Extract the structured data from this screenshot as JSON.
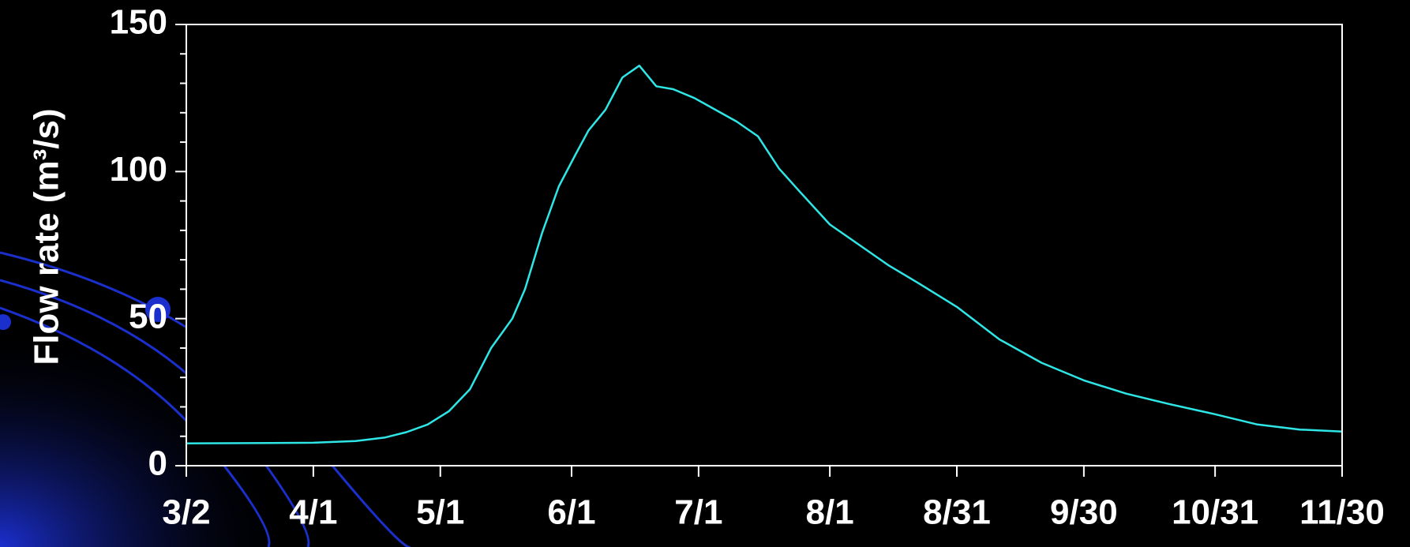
{
  "chart_data": {
    "type": "line",
    "y_label": "Flow rate (m³/s)",
    "x": [
      "3/2",
      "3/22",
      "4/1",
      "4/11",
      "4/18",
      "4/23",
      "4/28",
      "5/3",
      "5/8",
      "5/13",
      "5/18",
      "5/21",
      "5/25",
      "5/29",
      "6/2",
      "6/5",
      "6/9",
      "6/13",
      "6/17",
      "6/21",
      "6/25",
      "6/30",
      "7/5",
      "7/10",
      "7/15",
      "7/20",
      "7/25",
      "8/1",
      "8/8",
      "8/15",
      "8/22",
      "8/31",
      "9/10",
      "9/20",
      "9/30",
      "10/10",
      "10/20",
      "10/31",
      "11/10",
      "11/20",
      "11/30"
    ],
    "series": [
      {
        "color": "#2ee6e6",
        "values": [
          7.6,
          7.7,
          7.8,
          8.4,
          9.6,
          11.4,
          14,
          18.5,
          26,
          40,
          50,
          60,
          79,
          95,
          106,
          114,
          121,
          132,
          136,
          129,
          128,
          125,
          121,
          117,
          112,
          101,
          93,
          82,
          75,
          68,
          62,
          54,
          43,
          35,
          29,
          24.5,
          21,
          17.5,
          14,
          12.3,
          11.6
        ]
      }
    ],
    "xlim": [
      "3/2",
      "11/30"
    ],
    "xticks": [
      "3/2",
      "4/1",
      "5/1",
      "6/1",
      "7/1",
      "8/1",
      "8/31",
      "9/30",
      "10/31",
      "11/30"
    ],
    "ylim": [
      0,
      150
    ],
    "yticks": [
      0,
      50,
      100,
      150
    ],
    "yticks_minor": [
      10,
      20,
      30,
      40,
      60,
      70,
      80,
      90,
      110,
      120,
      130,
      140
    ]
  }
}
